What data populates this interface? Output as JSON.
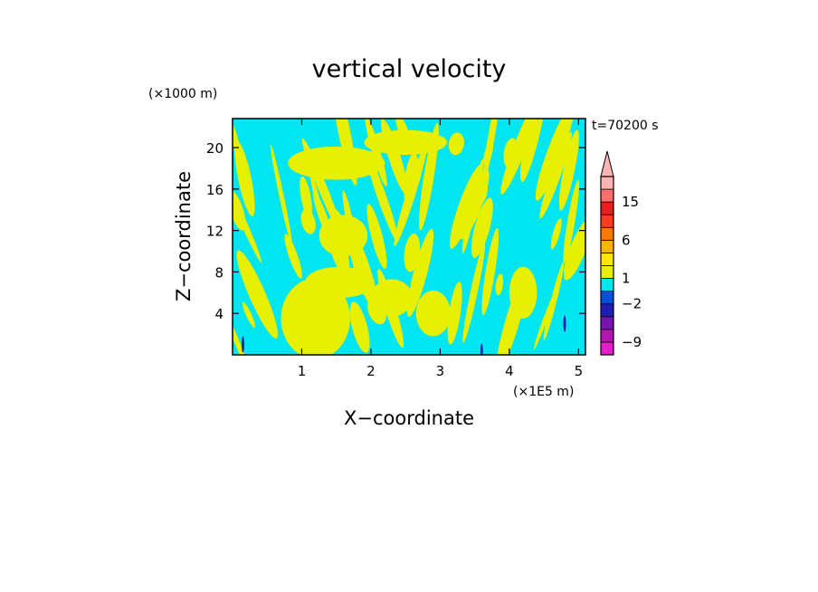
{
  "chart_data": {
    "type": "heatmap",
    "title": "vertical velocity",
    "xlabel": "X−coordinate",
    "ylabel": "Z−coordinate",
    "x_unit": "(×1E5 m)",
    "y_unit": "(×1000 m)",
    "time_label": "t=70200 s",
    "xlim": [
      0,
      5.1
    ],
    "ylim": [
      0,
      22.8
    ],
    "x_ticks": [
      "1",
      "2",
      "3",
      "4",
      "5"
    ],
    "x_tick_values": [
      1,
      2,
      3,
      4,
      5
    ],
    "y_ticks": [
      "4",
      "8",
      "12",
      "16",
      "20"
    ],
    "y_tick_values": [
      4,
      8,
      12,
      16,
      20
    ],
    "grid": false,
    "colorbar": {
      "levels": [
        -12,
        -9,
        -6,
        -4,
        -2,
        -1,
        1,
        2,
        4,
        6,
        9,
        12,
        15,
        18,
        24
      ],
      "colors": [
        "#e51ec8",
        "#b414b4",
        "#7814b4",
        "#1e1eb4",
        "#0050dc",
        "#00e6f0",
        "#e6f000",
        "#ffe600",
        "#ffb400",
        "#ff7800",
        "#ff3c1e",
        "#e61e1e",
        "#ff6e6e",
        "#ffb4b4"
      ],
      "tick_labels": [
        "15",
        "6",
        "1",
        "−2",
        "−9"
      ],
      "tick_values": [
        15,
        6,
        1,
        -2,
        -9
      ],
      "extend": "max"
    },
    "field_colors": {
      "positive": "#e6f000",
      "negative": "#00e6f0",
      "strong_negative": "#1e1eb4"
    },
    "dominant_range": [
      -1,
      1
    ]
  }
}
